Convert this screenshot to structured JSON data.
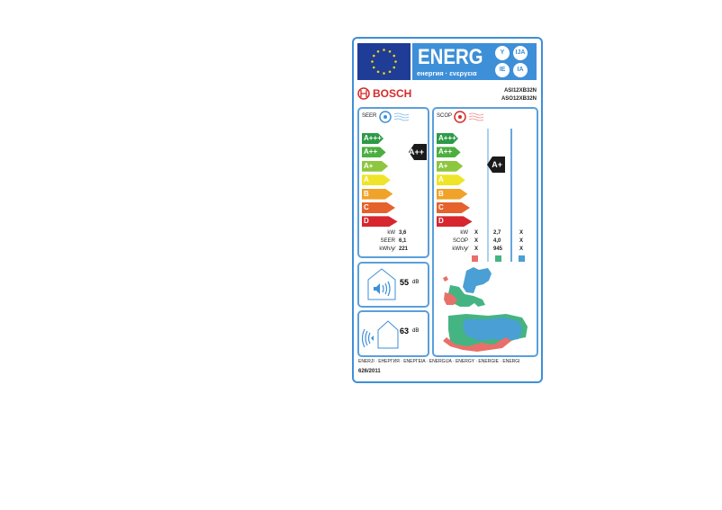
{
  "header": {
    "energy_word": "ENERG",
    "subtitle": "енергия · ενεργεια",
    "languages": [
      "Y",
      "IJA",
      "IE",
      "IA"
    ]
  },
  "brand": "BOSCH",
  "models": [
    "ASI12XB32N",
    "ASO12XB32N"
  ],
  "classes": [
    "A+++",
    "A++",
    "A+",
    "A",
    "B",
    "C",
    "D"
  ],
  "class_colors": [
    "#2e9a47",
    "#4caf3f",
    "#8dc63f",
    "#eee52a",
    "#f0a229",
    "#e5622c",
    "#d7262e"
  ],
  "seer": {
    "title": "SEER",
    "rating": "A++",
    "rows": [
      {
        "label": "kW",
        "value": "3,6"
      },
      {
        "label": "SEER",
        "value": "6,1"
      },
      {
        "label": "kWh/y⁄",
        "value": "221"
      }
    ]
  },
  "scop": {
    "title": "SCOP",
    "rating": "A+",
    "rows": [
      {
        "label": "kW",
        "cols": [
          "X",
          "2,7",
          "X"
        ]
      },
      {
        "label": "SCOP",
        "cols": [
          "X",
          "4,0",
          "X"
        ]
      },
      {
        "label": "kWh/y⁄",
        "cols": [
          "X",
          "945",
          "X"
        ]
      }
    ],
    "zone_colors": [
      "#e8706a",
      "#45b483",
      "#4a9fd4"
    ]
  },
  "noise": {
    "indoor_value": "55",
    "outdoor_value": "63",
    "unit": "dB"
  },
  "footer": {
    "languages": "ENERJI · ЕНЕРГИЯ · ΕΝΕΡΓΕΙΑ · ENERGIJA · ENERGY · ENERGIE · ENERGI",
    "regulation": "626/2011"
  }
}
